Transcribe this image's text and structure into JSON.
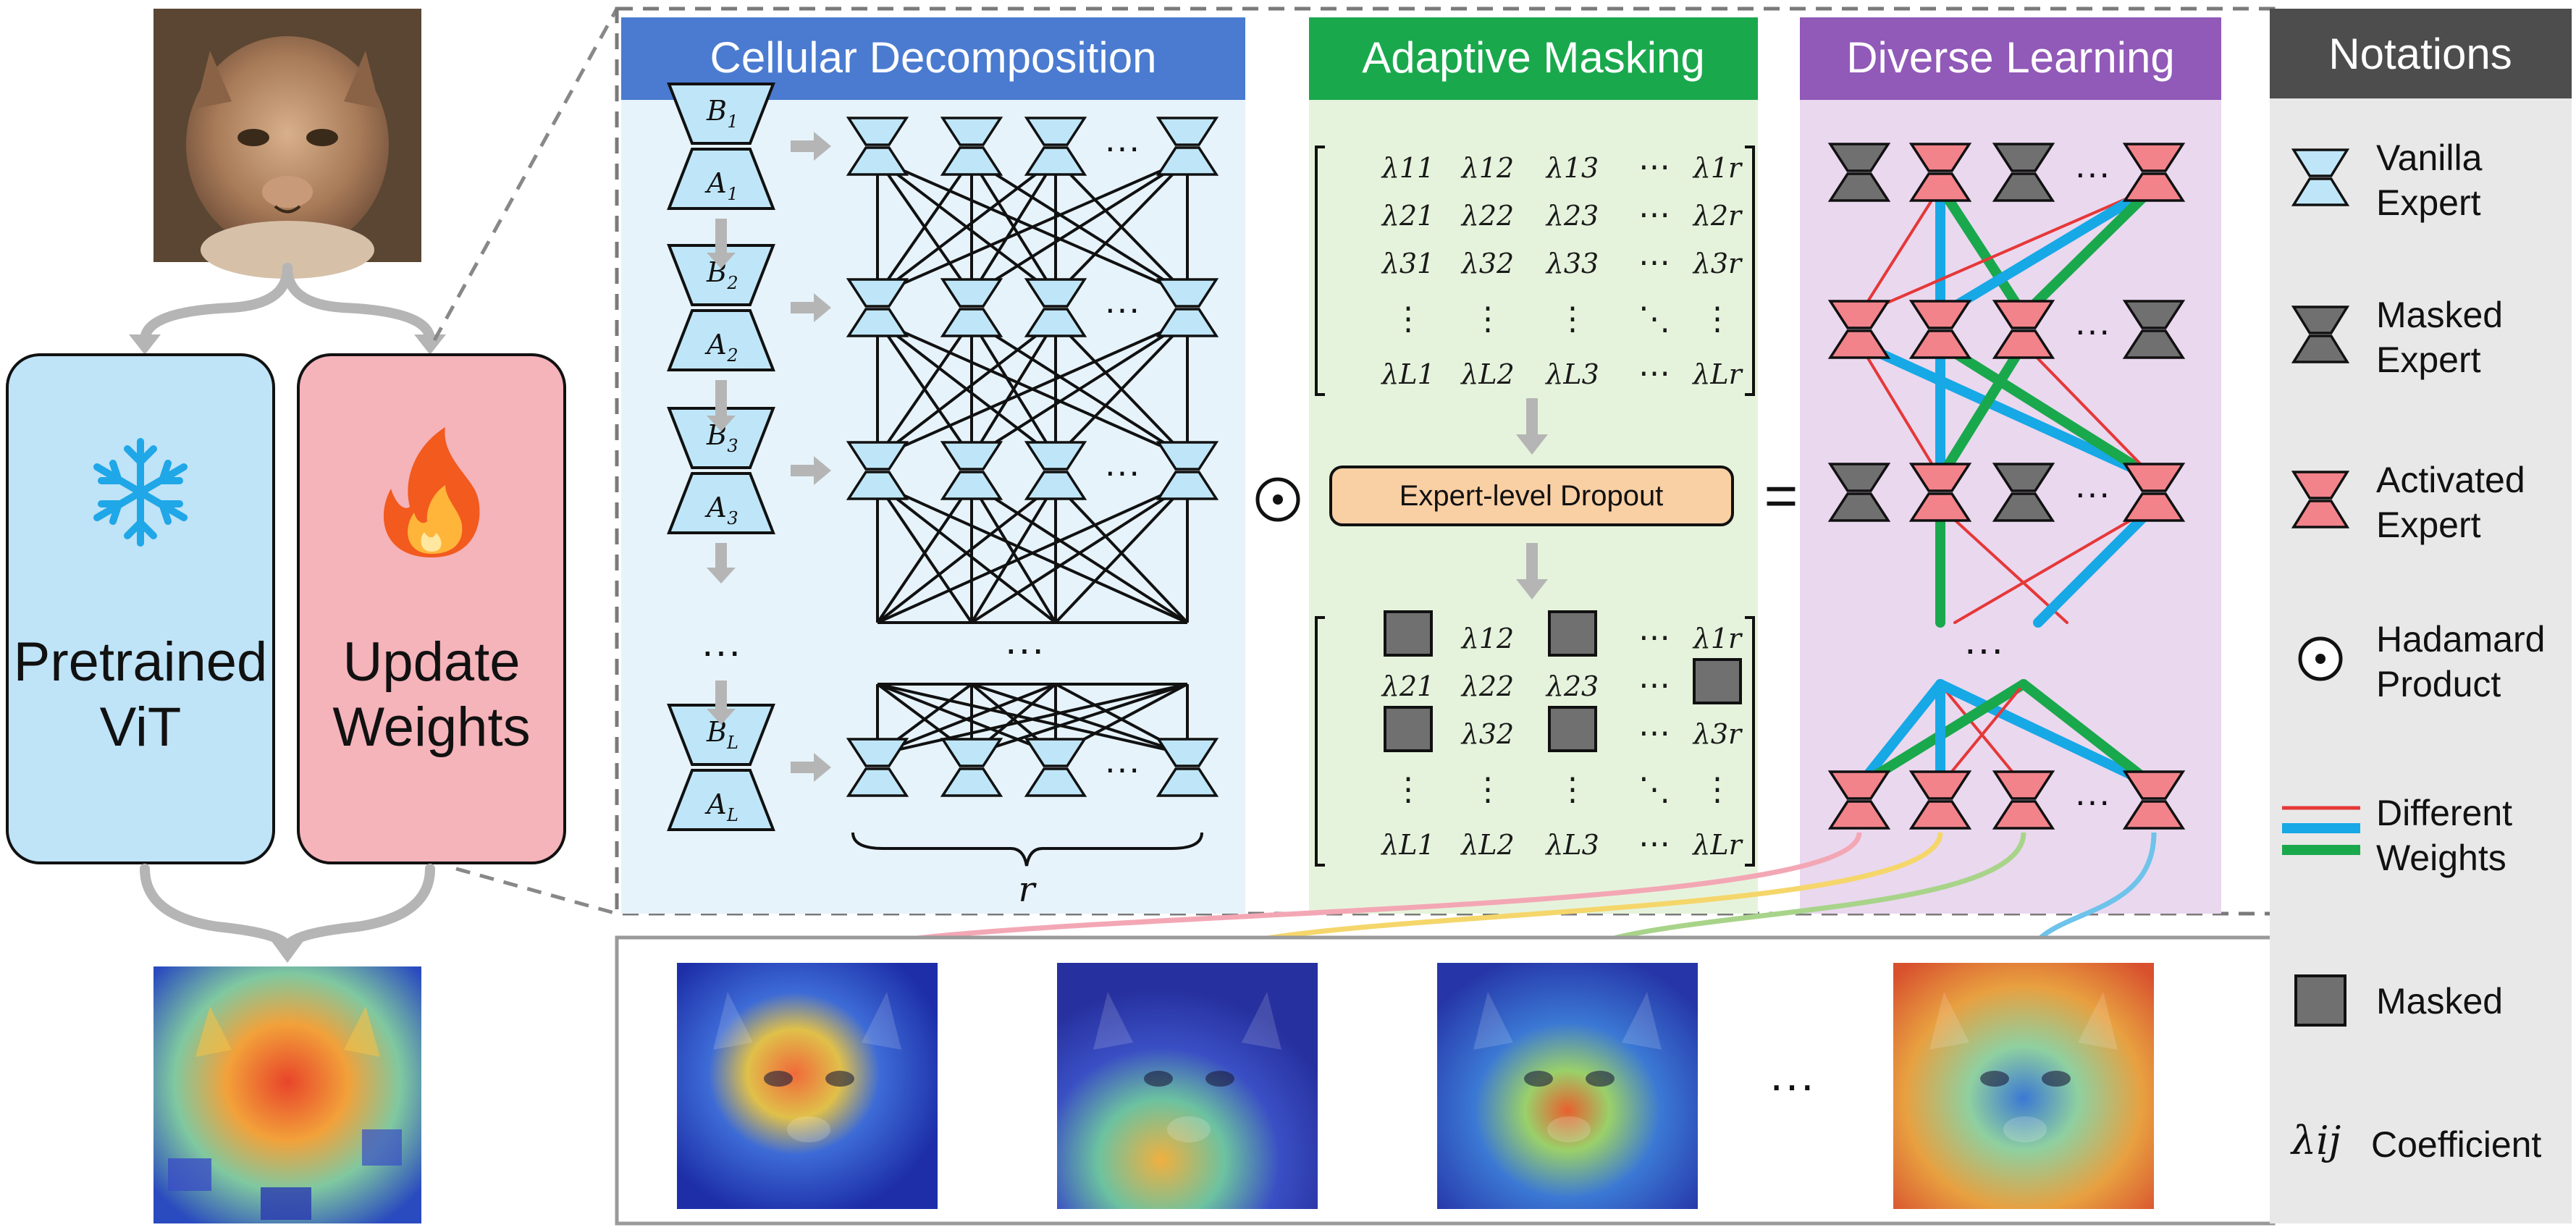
{
  "colors": {
    "vanilla": "#bfe6f8",
    "masked": "#707070",
    "activated": "#f2838b",
    "cellular_header": "#4a7bd0",
    "masking_header": "#1aa84d",
    "learning_header": "#9159b8",
    "notations_header": "#4d4d4d",
    "pretrained_box": "#bfe3f7",
    "update_box": "#f5b3ba",
    "edge_red": "#e53838",
    "edge_blue": "#17a8e6",
    "edge_green": "#1aa84d"
  },
  "left": {
    "pretrained_line1": "Pretrained",
    "pretrained_line2": "ViT",
    "update_line1": "Update",
    "update_line2": "Weights",
    "snowflake_icon": "snowflake-icon",
    "fire_icon": "fire-icon"
  },
  "sections": {
    "cellular": "Cellular Decomposition",
    "masking": "Adaptive Masking",
    "learning": "Diverse Learning"
  },
  "cellular": {
    "layers": [
      {
        "b": "B",
        "b_sub": "1",
        "a": "A",
        "a_sub": "1"
      },
      {
        "b": "B",
        "b_sub": "2",
        "a": "A",
        "a_sub": "2"
      },
      {
        "b": "B",
        "b_sub": "3",
        "a": "A",
        "a_sub": "3"
      },
      {
        "b": "B",
        "b_sub": "L",
        "a": "A",
        "a_sub": "L"
      }
    ],
    "ellipsis": "···",
    "rank": "r"
  },
  "masking": {
    "matrix_top": [
      [
        "λ11",
        "λ12",
        "λ13",
        "⋯",
        "λ1r"
      ],
      [
        "λ21",
        "λ22",
        "λ23",
        "⋯",
        "λ2r"
      ],
      [
        "λ31",
        "λ32",
        "λ33",
        "⋯",
        "λ3r"
      ],
      [
        "⋮",
        "⋮",
        "⋮",
        "⋱",
        "⋮"
      ],
      [
        "λL1",
        "λL2",
        "λL3",
        "⋯",
        "λLr"
      ]
    ],
    "dropout_label": "Expert-level Dropout",
    "matrix_bottom": [
      [
        "■",
        "λ12",
        "■",
        "⋯",
        "λ1r"
      ],
      [
        "λ21",
        "λ22",
        "λ23",
        "⋯",
        "■"
      ],
      [
        "■",
        "λ32",
        "■",
        "⋯",
        "λ3r"
      ],
      [
        "⋮",
        "⋮",
        "⋮",
        "⋱",
        "⋮"
      ],
      [
        "λL1",
        "λL2",
        "λL3",
        "⋯",
        "λLr"
      ]
    ]
  },
  "operators": {
    "hadamard": "⊙",
    "equals": "="
  },
  "learning": {
    "rows": [
      [
        "masked",
        "activated",
        "masked",
        "activated"
      ],
      [
        "activated",
        "activated",
        "activated",
        "masked"
      ],
      [
        "masked",
        "activated",
        "masked",
        "activated"
      ],
      [
        "activated",
        "activated",
        "activated",
        "activated"
      ]
    ]
  },
  "notations": {
    "title": "Notations",
    "items": [
      {
        "line1": "Vanilla",
        "line2": "Expert"
      },
      {
        "line1": "Masked",
        "line2": "Expert"
      },
      {
        "line1": "Activated",
        "line2": "Expert"
      },
      {
        "line1": "Hadamard",
        "line2": "Product"
      },
      {
        "line1": "Different",
        "line2": "Weights"
      },
      {
        "line1": "Masked",
        "line2": ""
      },
      {
        "symbol": "λij",
        "line1": "Coefficient",
        "line2": ""
      }
    ]
  },
  "bottom": {
    "ellipsis": "···"
  }
}
